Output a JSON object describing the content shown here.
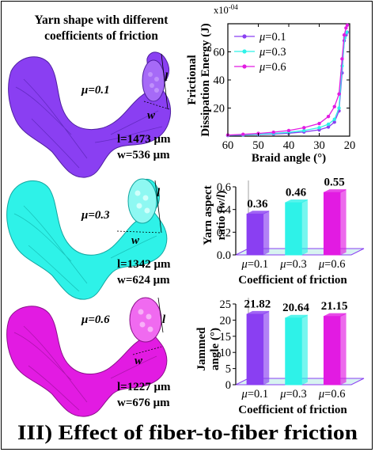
{
  "colors": {
    "purple": "#8a3ff2",
    "cyan": "#2ef2e8",
    "magenta": "#e21be2"
  },
  "yarn_panel": {
    "title_line1": "Yarn shape with different",
    "title_line2": "coefficients of friction",
    "yarns": [
      {
        "mu_label": "μ=0.1",
        "l_text": "l=1473 μm",
        "w_text": "w=536 μm",
        "color": "#8a3ff2"
      },
      {
        "mu_label": "μ=0.3",
        "l_text": "l=1342 μm",
        "w_text": "w=624 μm",
        "color": "#2ef2e8"
      },
      {
        "mu_label": "μ=0.6",
        "l_text": "l=1227 μm",
        "w_text": "w=676 μm",
        "color": "#e21be2"
      }
    ],
    "dim_l": "l",
    "dim_w": "w"
  },
  "caption": "III) Effect of fiber-to-fiber friction",
  "chart_data": [
    {
      "type": "line",
      "ylabel": "Frictional Dissipation Energy (J)",
      "xlabel": "Braid angle (°)",
      "y_multiplier": "x10",
      "y_exponent": "-04",
      "xlim": [
        60,
        20
      ],
      "ylim": [
        0,
        80
      ],
      "xticks": [
        60,
        50,
        40,
        30,
        20
      ],
      "yticks": [
        20,
        40,
        60
      ],
      "series": [
        {
          "name": "μ=0.1",
          "color": "#8a3ff2",
          "x": [
            60,
            55,
            50,
            45,
            40,
            35,
            30,
            27,
            25,
            23.5,
            22.5,
            21.8,
            21.2,
            20.8
          ],
          "y": [
            0.5,
            0.8,
            1.1,
            1.5,
            2.1,
            3.0,
            4.5,
            6.5,
            10,
            18,
            45,
            68,
            72,
            74
          ]
        },
        {
          "name": "μ=0.3",
          "color": "#2ef2e8",
          "x": [
            60,
            55,
            50,
            45,
            40,
            35,
            30,
            27,
            25,
            23.5,
            22.5,
            21.6,
            21
          ],
          "y": [
            0.6,
            0.9,
            1.3,
            1.9,
            2.7,
            4,
            6,
            8.5,
            12,
            20,
            50,
            70,
            74
          ]
        },
        {
          "name": "μ=0.6",
          "color": "#e21be2",
          "x": [
            60,
            55,
            50,
            45,
            40,
            35,
            30,
            27,
            25,
            23.5,
            22.5,
            21.8,
            21.2,
            20.8
          ],
          "y": [
            0.8,
            1.3,
            1.9,
            2.8,
            4,
            6,
            9,
            14,
            21,
            30,
            55,
            72,
            77,
            79
          ]
        }
      ]
    },
    {
      "type": "bar",
      "ylabel_line1": "Yarn aspect",
      "ylabel_line2": "ratio (w/l)",
      "xlabel": "Coefficient of friction",
      "categories": [
        "μ=0.1",
        "μ=0.3",
        "μ=0.6"
      ],
      "values": [
        0.36,
        0.46,
        0.55
      ],
      "labels": [
        "0.36",
        "0.46",
        "0.55"
      ],
      "ylim": [
        0,
        0.6
      ],
      "yticks": [
        "0.0",
        "0.2",
        "0.4",
        "0.6"
      ],
      "colors": [
        "#8a3ff2",
        "#2ef2e8",
        "#e21be2"
      ]
    },
    {
      "type": "bar",
      "ylabel_line1": "Jammed",
      "ylabel_line2": "angle (°)",
      "xlabel": "Coefficient of friction",
      "categories": [
        "μ=0.1",
        "μ=0.3",
        "μ=0.6"
      ],
      "values": [
        21.82,
        20.64,
        21.15
      ],
      "labels": [
        "21.82",
        "20.64",
        "21.15"
      ],
      "ylim": [
        0,
        25
      ],
      "yticks": [
        "0",
        "5",
        "10",
        "15",
        "20",
        "25"
      ],
      "colors": [
        "#8a3ff2",
        "#2ef2e8",
        "#e21be2"
      ]
    }
  ]
}
